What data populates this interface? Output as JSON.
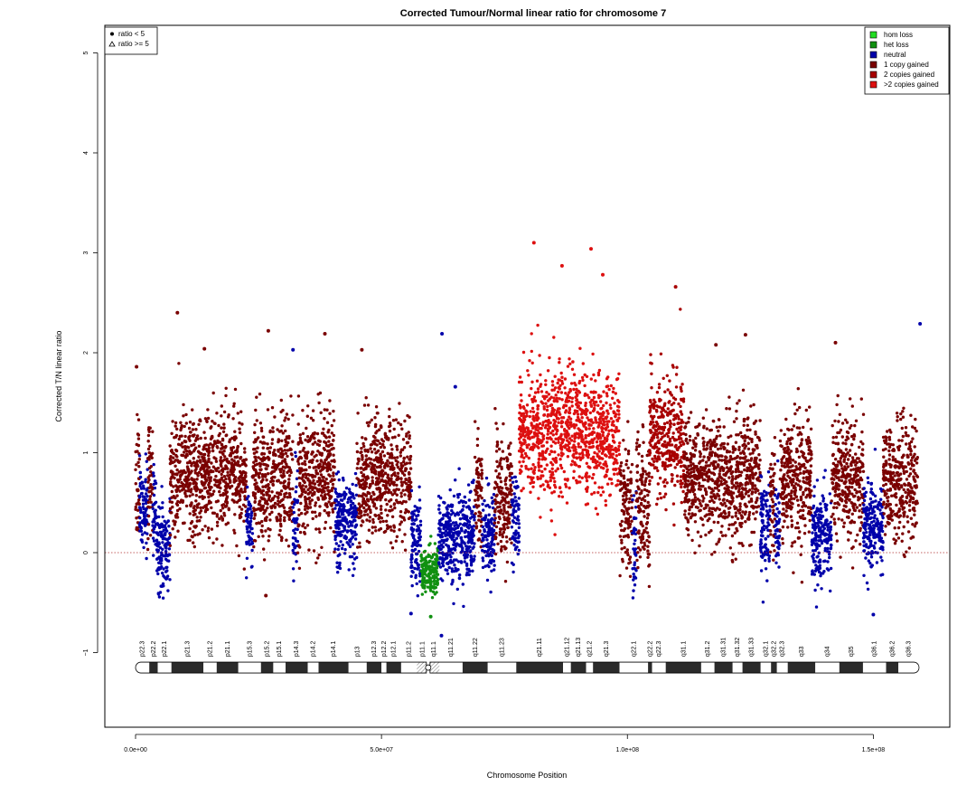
{
  "chart_data": {
    "type": "scatter",
    "title": "Corrected Tumour/Normal linear ratio for chromosome  7",
    "xlabel": "Chromosome Position",
    "ylabel": "Corrected T/N linear ratio",
    "xlim": [
      0,
      160000000
    ],
    "ylim": [
      -1.8,
      5.3
    ],
    "x_ticks": [
      {
        "value": 0,
        "label": "0.0e+00"
      },
      {
        "value": 50000000,
        "label": "5.0e+07"
      },
      {
        "value": 100000000,
        "label": "1.0e+08"
      },
      {
        "value": 150000000,
        "label": "1.5e+08"
      }
    ],
    "y_ticks": [
      {
        "value": -1,
        "label": "−1"
      },
      {
        "value": 0,
        "label": "0"
      },
      {
        "value": 1,
        "label": "1"
      },
      {
        "value": 2,
        "label": "2"
      },
      {
        "value": 3,
        "label": "3"
      },
      {
        "value": 4,
        "label": "4"
      },
      {
        "value": 5,
        "label": "5"
      }
    ],
    "reference_line": {
      "y": 0,
      "style": "dotted",
      "color": "#b03030"
    },
    "grid": false,
    "shape_legend": {
      "placement": "top-left",
      "entries": [
        {
          "label": "ratio < 5",
          "shape": "circle"
        },
        {
          "label": "ratio >= 5",
          "shape": "triangle"
        }
      ]
    },
    "legend": {
      "placement": "top-right",
      "entries": [
        {
          "label": "hom loss",
          "color": "#22dd22"
        },
        {
          "label": "het loss",
          "color": "#109010"
        },
        {
          "label": "neutral",
          "color": "#0000aa"
        },
        {
          "label": "1 copy gained",
          "color": "#7a0000"
        },
        {
          "label": "2 copies gained",
          "color": "#a80000"
        },
        {
          "label": ">2 copies gained",
          "color": "#dd1010"
        }
      ]
    },
    "segments": [
      {
        "start": 0,
        "end": 800000,
        "state": "1 copy gained",
        "median": 0.75
      },
      {
        "start": 800000,
        "end": 2500000,
        "state": "neutral",
        "median": 0.45
      },
      {
        "start": 2500000,
        "end": 3500000,
        "state": "1 copy gained",
        "median": 0.75
      },
      {
        "start": 3500000,
        "end": 4200000,
        "state": "neutral",
        "median": 0.45
      },
      {
        "start": 4200000,
        "end": 7000000,
        "state": "neutral",
        "median": 0.05
      },
      {
        "start": 7000000,
        "end": 22500000,
        "state": "1 copy gained",
        "median": 0.8
      },
      {
        "start": 22500000,
        "end": 23800000,
        "state": "neutral",
        "median": 0.3
      },
      {
        "start": 23800000,
        "end": 32000000,
        "state": "1 copy gained",
        "median": 0.75
      },
      {
        "start": 32000000,
        "end": 33000000,
        "state": "neutral",
        "median": 0.3
      },
      {
        "start": 33000000,
        "end": 40500000,
        "state": "1 copy gained",
        "median": 0.75
      },
      {
        "start": 40500000,
        "end": 45000000,
        "state": "neutral",
        "median": 0.3
      },
      {
        "start": 45000000,
        "end": 56000000,
        "state": "1 copy gained",
        "median": 0.75
      },
      {
        "start": 56000000,
        "end": 58000000,
        "state": "neutral",
        "median": 0.1
      },
      {
        "start": 58000000,
        "end": 61500000,
        "state": "het loss",
        "median": -0.2
      },
      {
        "start": 61500000,
        "end": 69000000,
        "state": "neutral",
        "median": 0.15
      },
      {
        "start": 69000000,
        "end": 70500000,
        "state": "1 copy gained",
        "median": 0.6
      },
      {
        "start": 70500000,
        "end": 73000000,
        "state": "neutral",
        "median": 0.2
      },
      {
        "start": 73000000,
        "end": 76500000,
        "state": "1 copy gained",
        "median": 0.55
      },
      {
        "start": 76500000,
        "end": 78000000,
        "state": "neutral",
        "median": 0.3
      },
      {
        "start": 78000000,
        "end": 98500000,
        "state": ">2 copies gained",
        "median": 1.2
      },
      {
        "start": 98500000,
        "end": 101000000,
        "state": "1 copy gained",
        "median": 0.45
      },
      {
        "start": 101000000,
        "end": 101800000,
        "state": "neutral",
        "median": 0.1
      },
      {
        "start": 101800000,
        "end": 104500000,
        "state": "1 copy gained",
        "median": 0.5
      },
      {
        "start": 104500000,
        "end": 111500000,
        "state": "2 copies gained",
        "median": 1.15
      },
      {
        "start": 111500000,
        "end": 127000000,
        "state": "1 copy gained",
        "median": 0.75
      },
      {
        "start": 127000000,
        "end": 129000000,
        "state": "neutral",
        "median": 0.25
      },
      {
        "start": 129000000,
        "end": 130000000,
        "state": "1 copy gained",
        "median": 0.55
      },
      {
        "start": 130000000,
        "end": 131000000,
        "state": "neutral",
        "median": 0.25
      },
      {
        "start": 131000000,
        "end": 137500000,
        "state": "1 copy gained",
        "median": 0.7
      },
      {
        "start": 137500000,
        "end": 141500000,
        "state": "neutral",
        "median": 0.2
      },
      {
        "start": 141500000,
        "end": 148000000,
        "state": "1 copy gained",
        "median": 0.75
      },
      {
        "start": 148000000,
        "end": 152000000,
        "state": "neutral",
        "median": 0.25
      },
      {
        "start": 152000000,
        "end": 159000000,
        "state": "1 copy gained",
        "median": 0.7
      }
    ],
    "outliers": [
      {
        "x": 200000,
        "y": 1.86
      },
      {
        "x": 8500000,
        "y": 2.4
      },
      {
        "x": 14000000,
        "y": 2.04
      },
      {
        "x": 27000000,
        "y": 2.22
      },
      {
        "x": 32000000,
        "y": 2.03
      },
      {
        "x": 38500000,
        "y": 2.19
      },
      {
        "x": 46000000,
        "y": 2.03
      },
      {
        "x": 62300000,
        "y": 2.19
      },
      {
        "x": 65000000,
        "y": 1.66
      },
      {
        "x": 81000000,
        "y": 3.1
      },
      {
        "x": 86700000,
        "y": 2.87
      },
      {
        "x": 92600000,
        "y": 3.04
      },
      {
        "x": 95000000,
        "y": 2.78
      },
      {
        "x": 109800000,
        "y": 2.66
      },
      {
        "x": 118000000,
        "y": 2.08
      },
      {
        "x": 124000000,
        "y": 2.18
      },
      {
        "x": 142300000,
        "y": 2.1
      },
      {
        "x": 159500000,
        "y": 2.29
      },
      {
        "x": 62200000,
        "y": -0.83
      },
      {
        "x": 60000000,
        "y": -0.64
      },
      {
        "x": 56000000,
        "y": -0.61
      },
      {
        "x": 150000000,
        "y": -0.62
      },
      {
        "x": 26500000,
        "y": -0.43
      }
    ],
    "ideogram": {
      "y": -1.15,
      "centromere": 59500000,
      "acen_left": 57200000,
      "acen_right": 61800000,
      "bands": [
        {
          "name": "p22.3",
          "start": 0,
          "end": 2800000,
          "stain": "white"
        },
        {
          "name": "p22.2",
          "start": 2800000,
          "end": 4500000,
          "stain": "dark"
        },
        {
          "name": "p22.1",
          "start": 4500000,
          "end": 7300000,
          "stain": "white"
        },
        {
          "name": "p21.3",
          "start": 7300000,
          "end": 13800000,
          "stain": "dark"
        },
        {
          "name": "p21.2",
          "start": 13800000,
          "end": 16500000,
          "stain": "white"
        },
        {
          "name": "p21.1",
          "start": 16500000,
          "end": 20900000,
          "stain": "dark"
        },
        {
          "name": "p15.3",
          "start": 20900000,
          "end": 25500000,
          "stain": "white"
        },
        {
          "name": "p15.2",
          "start": 25500000,
          "end": 28000000,
          "stain": "dark"
        },
        {
          "name": "p15.1",
          "start": 28000000,
          "end": 30500000,
          "stain": "white"
        },
        {
          "name": "p14.3",
          "start": 30500000,
          "end": 35000000,
          "stain": "dark"
        },
        {
          "name": "p14.2",
          "start": 35000000,
          "end": 37200000,
          "stain": "white"
        },
        {
          "name": "p14.1",
          "start": 37200000,
          "end": 43300000,
          "stain": "dark"
        },
        {
          "name": "p13",
          "start": 43300000,
          "end": 47000000,
          "stain": "white"
        },
        {
          "name": "p12.3",
          "start": 47000000,
          "end": 50000000,
          "stain": "dark"
        },
        {
          "name": "p12.2",
          "start": 50000000,
          "end": 51000000,
          "stain": "white"
        },
        {
          "name": "p12.1",
          "start": 51000000,
          "end": 54000000,
          "stain": "dark"
        },
        {
          "name": "p11.2",
          "start": 54000000,
          "end": 57200000,
          "stain": "white"
        },
        {
          "name": "p11.1",
          "start": 57200000,
          "end": 59500000,
          "stain": "acen"
        },
        {
          "name": "q11.1",
          "start": 59500000,
          "end": 61800000,
          "stain": "acen"
        },
        {
          "name": "q11.21",
          "start": 61800000,
          "end": 66500000,
          "stain": "white"
        },
        {
          "name": "q11.22",
          "start": 66500000,
          "end": 71600000,
          "stain": "dark"
        },
        {
          "name": "q11.23",
          "start": 71600000,
          "end": 77400000,
          "stain": "white"
        },
        {
          "name": "q21.11",
          "start": 77400000,
          "end": 86900000,
          "stain": "dark"
        },
        {
          "name": "q21.12",
          "start": 86900000,
          "end": 88500000,
          "stain": "white"
        },
        {
          "name": "q21.13",
          "start": 88500000,
          "end": 91600000,
          "stain": "dark"
        },
        {
          "name": "q21.2",
          "start": 91600000,
          "end": 93000000,
          "stain": "white"
        },
        {
          "name": "q21.3",
          "start": 93000000,
          "end": 98400000,
          "stain": "dark"
        },
        {
          "name": "q22.1",
          "start": 98400000,
          "end": 104200000,
          "stain": "white"
        },
        {
          "name": "q22.2",
          "start": 104200000,
          "end": 105000000,
          "stain": "dark"
        },
        {
          "name": "q22.3",
          "start": 105000000,
          "end": 107800000,
          "stain": "white"
        },
        {
          "name": "q31.1",
          "start": 107800000,
          "end": 115000000,
          "stain": "dark"
        },
        {
          "name": "q31.2",
          "start": 115000000,
          "end": 117700000,
          "stain": "white"
        },
        {
          "name": "q31.31",
          "start": 117700000,
          "end": 121400000,
          "stain": "dark"
        },
        {
          "name": "q31.32",
          "start": 121400000,
          "end": 123400000,
          "stain": "white"
        },
        {
          "name": "q31.33",
          "start": 123400000,
          "end": 127100000,
          "stain": "dark"
        },
        {
          "name": "q32.1",
          "start": 127100000,
          "end": 129200000,
          "stain": "white"
        },
        {
          "name": "q32.2",
          "start": 129200000,
          "end": 130400000,
          "stain": "dark"
        },
        {
          "name": "q32.3",
          "start": 130400000,
          "end": 132600000,
          "stain": "white"
        },
        {
          "name": "q33",
          "start": 132600000,
          "end": 138200000,
          "stain": "dark"
        },
        {
          "name": "q34",
          "start": 138200000,
          "end": 143100000,
          "stain": "white"
        },
        {
          "name": "q35",
          "start": 143100000,
          "end": 147900000,
          "stain": "dark"
        },
        {
          "name": "q36.1",
          "start": 147900000,
          "end": 152600000,
          "stain": "white"
        },
        {
          "name": "q36.2",
          "start": 152600000,
          "end": 155100000,
          "stain": "dark"
        },
        {
          "name": "q36.3",
          "start": 155100000,
          "end": 159300000,
          "stain": "white"
        }
      ]
    }
  }
}
